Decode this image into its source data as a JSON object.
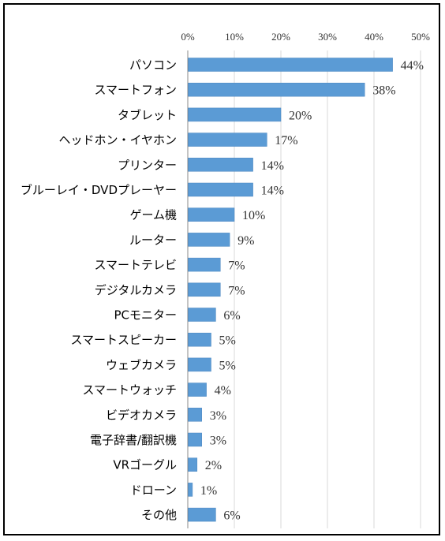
{
  "chart_data": {
    "type": "bar",
    "orientation": "horizontal",
    "title": "",
    "xlabel": "",
    "ylabel": "",
    "xlim": [
      0,
      50
    ],
    "tick_values": [
      0,
      10,
      20,
      30,
      40,
      50
    ],
    "tick_labels": [
      "0%",
      "10%",
      "20%",
      "30%",
      "40%",
      "50%"
    ],
    "axis_position": "top",
    "grid": true,
    "legend": "none",
    "bar_color": "#5b9bd5",
    "categories": [
      "パソコン",
      "スマートフォン",
      "タブレット",
      "ヘッドホン・イヤホン",
      "プリンター",
      "ブルーレイ・DVDプレーヤー",
      "ゲーム機",
      "ルーター",
      "スマートテレビ",
      "デジタルカメラ",
      "PCモニター",
      "スマートスピーカー",
      "ウェブカメラ",
      "スマートウォッチ",
      "ビデオカメラ",
      "電子辞書/翻訳機",
      "VRゴーグル",
      "ドローン",
      "その他"
    ],
    "values": [
      44,
      38,
      20,
      17,
      14,
      14,
      10,
      9,
      7,
      7,
      6,
      5,
      5,
      4,
      3,
      3,
      2,
      1,
      6
    ],
    "data_labels": [
      "44%",
      "38%",
      "20%",
      "17%",
      "14%",
      "14%",
      "10%",
      "9%",
      "7%",
      "7%",
      "6%",
      "5%",
      "5%",
      "4%",
      "3%",
      "3%",
      "2%",
      "1%",
      "6%"
    ]
  }
}
